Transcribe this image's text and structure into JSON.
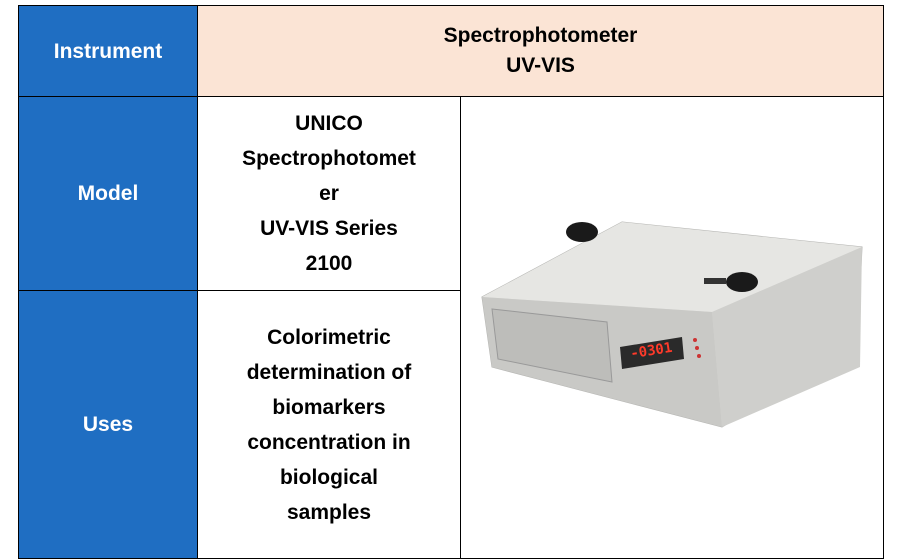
{
  "table": {
    "rows": [
      {
        "label": "Instrument",
        "lines": [
          "Spectrophotometer",
          "UV-VIS"
        ]
      },
      {
        "label": "Model",
        "lines": [
          "UNICO",
          "Spectrophotomet",
          "er",
          "UV-VIS Series",
          "2100"
        ]
      },
      {
        "label": "Uses",
        "lines": [
          "Colorimetric",
          "determination of",
          "biomarkers",
          "concentration in",
          "biological",
          "samples"
        ]
      }
    ],
    "image": {
      "display": "-0301"
    }
  }
}
